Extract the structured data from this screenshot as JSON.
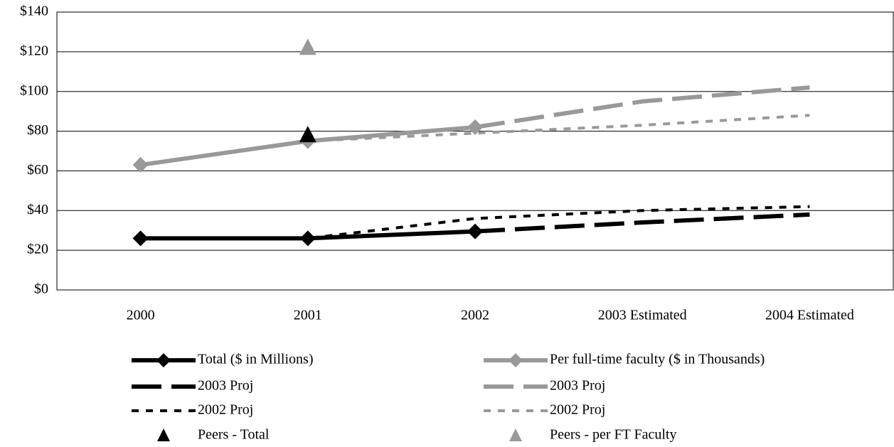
{
  "chart_data": {
    "type": "line",
    "categories": [
      "2000",
      "2001",
      "2002",
      "2003 Estimated",
      "2004 Estimated"
    ],
    "ylim": [
      0,
      140
    ],
    "yticks": [
      {
        "value": 0,
        "label": "$0"
      },
      {
        "value": 20,
        "label": "$20"
      },
      {
        "value": 40,
        "label": "$40"
      },
      {
        "value": 60,
        "label": "$60"
      },
      {
        "value": 80,
        "label": "$80"
      },
      {
        "value": 100,
        "label": "$100"
      },
      {
        "value": 120,
        "label": "$120"
      },
      {
        "value": 140,
        "label": "$140"
      }
    ],
    "grid": true,
    "legend": "bottom",
    "series": [
      {
        "name": "Total ($ in Millions)",
        "color": "#000000",
        "dash": "solid",
        "marker": "diamond",
        "values": [
          26,
          26,
          29.5,
          null,
          null
        ]
      },
      {
        "name": "Per full-time faculty ($ in Thousands)",
        "color": "#999999",
        "dash": "solid",
        "marker": "diamond",
        "values": [
          63,
          75,
          82,
          null,
          null
        ]
      },
      {
        "name": "2003 Proj",
        "color": "#000000",
        "dash": "dash",
        "values": [
          null,
          null,
          29.5,
          34,
          38
        ]
      },
      {
        "name": "2003 Proj",
        "color": "#999999",
        "dash": "dash",
        "values": [
          null,
          null,
          82,
          95,
          102
        ]
      },
      {
        "name": "2002 Proj",
        "color": "#000000",
        "dash": "dot",
        "values": [
          26,
          26,
          36,
          40,
          42
        ]
      },
      {
        "name": "2002 Proj",
        "color": "#999999",
        "dash": "dot",
        "values": [
          null,
          75,
          79,
          83,
          88
        ]
      },
      {
        "name": "Peers - Total",
        "color": "#000000",
        "dash": "none",
        "marker": "triangle",
        "values": [
          null,
          78,
          null,
          null,
          null
        ]
      },
      {
        "name": "Peers - per FT Faculty",
        "color": "#999999",
        "dash": "none",
        "marker": "triangle",
        "values": [
          null,
          122,
          null,
          null,
          null
        ]
      }
    ]
  }
}
